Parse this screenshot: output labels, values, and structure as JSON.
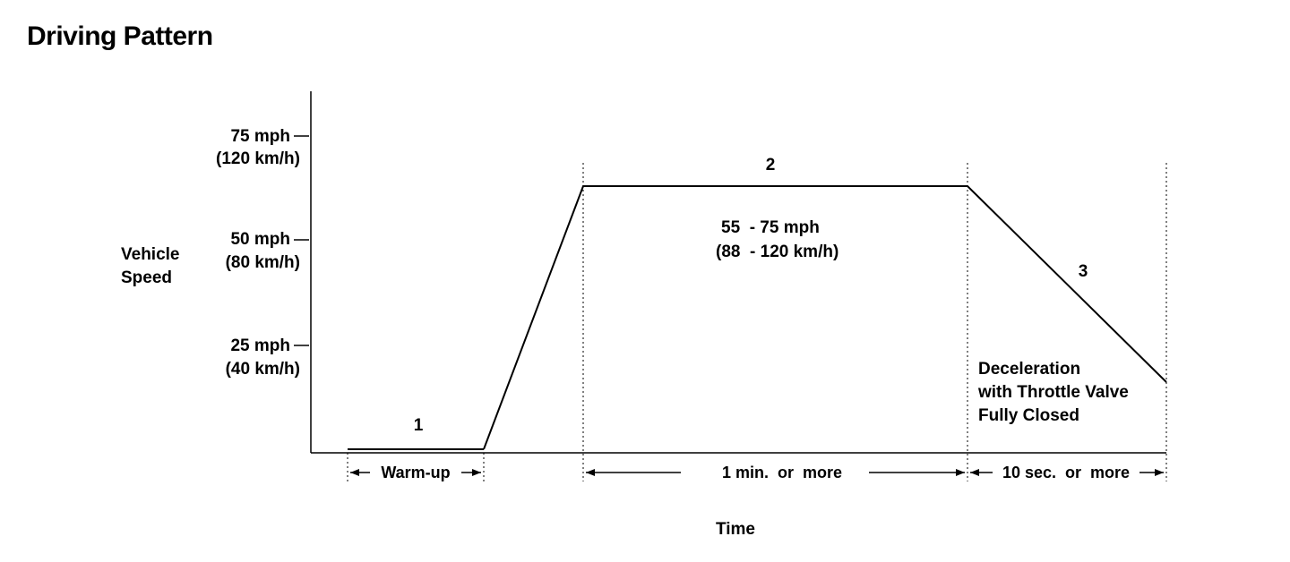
{
  "title": "Driving Pattern",
  "y_axis": {
    "label_line1": "Vehicle",
    "label_line2": "Speed",
    "ticks": [
      {
        "mph": "75 mph",
        "kmh": "(120 km/h)"
      },
      {
        "mph": "50 mph",
        "kmh": "(80 km/h)"
      },
      {
        "mph": "25 mph",
        "kmh": "(40 km/h)"
      }
    ]
  },
  "x_axis": {
    "label": "Time"
  },
  "phases": [
    {
      "number": "1",
      "duration": "Warm-up"
    },
    {
      "number": "2",
      "duration": "1 min.  or  more",
      "speed_mph": "55  - 75 mph",
      "speed_kmh": "(88  - 120 km/h)"
    },
    {
      "number": "3",
      "duration": "10 sec.  or  more",
      "note_line1": "Deceleration",
      "note_line2": "with Throttle Valve",
      "note_line3": "Fully Closed"
    }
  ],
  "colors": {
    "line": "#000000",
    "background": "#ffffff"
  }
}
